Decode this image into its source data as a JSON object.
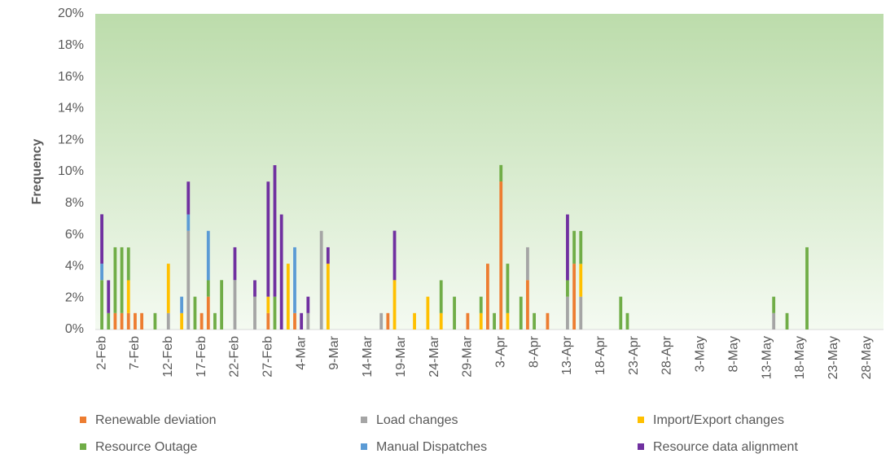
{
  "chart_data": {
    "type": "bar",
    "stacked": true,
    "y_label": "Frequency",
    "categories": [
      "2-Feb",
      null,
      null,
      null,
      null,
      "7-Feb",
      null,
      null,
      null,
      null,
      "12-Feb",
      null,
      null,
      null,
      null,
      "17-Feb",
      null,
      null,
      null,
      null,
      "22-Feb",
      null,
      null,
      null,
      null,
      "27-Feb",
      null,
      null,
      null,
      null,
      "4-Mar",
      null,
      null,
      null,
      null,
      "9-Mar",
      null,
      null,
      null,
      null,
      "14-Mar",
      null,
      null,
      null,
      null,
      "19-Mar",
      null,
      null,
      null,
      null,
      "24-Mar",
      null,
      null,
      null,
      null,
      "29-Mar",
      null,
      null,
      null,
      null,
      "3-Apr",
      null,
      null,
      null,
      null,
      "8-Apr",
      null,
      null,
      null,
      null,
      "13-Apr",
      null,
      null,
      null,
      null,
      "18-Apr",
      null,
      null,
      null,
      null,
      "23-Apr",
      null,
      null,
      null,
      null,
      "28-Apr",
      null,
      null,
      null,
      null,
      "3-May",
      null,
      null,
      null,
      null,
      "8-May",
      null,
      null,
      null,
      null,
      "13-May",
      null,
      null,
      null,
      null,
      "18-May",
      null,
      null,
      null,
      null,
      "23-May",
      null,
      null,
      null,
      null,
      "28-May",
      null,
      null
    ],
    "ylim": [
      0,
      20
    ],
    "yticks": [
      {
        "value": 0,
        "label": "0%"
      },
      {
        "value": 2,
        "label": "2%"
      },
      {
        "value": 4,
        "label": "4%"
      },
      {
        "value": 6,
        "label": "6%"
      },
      {
        "value": 8,
        "label": "8%"
      },
      {
        "value": 10,
        "label": "10%"
      },
      {
        "value": 12,
        "label": "12%"
      },
      {
        "value": 14,
        "label": "14%"
      },
      {
        "value": 16,
        "label": "16%"
      },
      {
        "value": 18,
        "label": "18%"
      },
      {
        "value": 20,
        "label": "20%"
      }
    ],
    "series": [
      {
        "name": "Renewable deviation",
        "color": "#ed7d31",
        "values": [
          0,
          0,
          1.04,
          1.04,
          1.04,
          1.04,
          1.04,
          0,
          0,
          0,
          0,
          0,
          0,
          0,
          0,
          1.04,
          2.08,
          0,
          0,
          0,
          0,
          0,
          0,
          0,
          0,
          1.04,
          0,
          0,
          0,
          1.04,
          0,
          0,
          0,
          0,
          0,
          0,
          0,
          0,
          0,
          0,
          0,
          0,
          0,
          1.04,
          0,
          0,
          0,
          0,
          0,
          0,
          0,
          0,
          0,
          0,
          0,
          1.04,
          0,
          0,
          4.17,
          0,
          9.38,
          0,
          0,
          0,
          3.13,
          0,
          0,
          1.04,
          0,
          0,
          0,
          4.17,
          0,
          0,
          0,
          0,
          0,
          0,
          0,
          0,
          0,
          0,
          0,
          0,
          0,
          0,
          0,
          0,
          0,
          0,
          0,
          0,
          0,
          0,
          0,
          0,
          0,
          0,
          0,
          0,
          0,
          0,
          0,
          0,
          0,
          0,
          0,
          0,
          0,
          0,
          0,
          0,
          0,
          0,
          0,
          0,
          0,
          0
        ]
      },
      {
        "name": "Load changes",
        "color": "#a5a5a5",
        "values": [
          0,
          0,
          0,
          0,
          0,
          0,
          0,
          0,
          0,
          0,
          1.04,
          0,
          0,
          6.25,
          0,
          0,
          0,
          0,
          0,
          0,
          3.13,
          0,
          0,
          2.08,
          0,
          0,
          0,
          0,
          0,
          0,
          0,
          1.04,
          0,
          6.25,
          0,
          0,
          0,
          0,
          0,
          0,
          0,
          0,
          1.04,
          0,
          0,
          0,
          0,
          0,
          0,
          0,
          0,
          0,
          0,
          0,
          0,
          0,
          0,
          0,
          0,
          0,
          0,
          0,
          0,
          0,
          2.08,
          0,
          0,
          0,
          0,
          0,
          2.08,
          0,
          2.08,
          0,
          0,
          0,
          0,
          0,
          0,
          0,
          0,
          0,
          0,
          0,
          0,
          0,
          0,
          0,
          0,
          0,
          0,
          0,
          0,
          0,
          0,
          0,
          0,
          0,
          0,
          0,
          0,
          1.04,
          0,
          0,
          0,
          0,
          0,
          0,
          0,
          0,
          0,
          0,
          0,
          0,
          0,
          0,
          0,
          0
        ]
      },
      {
        "name": "Import/Export changes",
        "color": "#ffc000",
        "values": [
          0,
          0,
          0,
          0,
          2.08,
          0,
          0,
          0,
          0,
          0,
          3.13,
          0,
          1.04,
          0,
          0,
          0,
          0,
          0,
          0,
          0,
          0,
          0,
          0,
          0,
          0,
          1.04,
          0,
          0,
          4.17,
          0,
          0,
          0,
          0,
          0,
          4.17,
          0,
          0,
          0,
          0,
          0,
          0,
          0,
          0,
          0,
          3.13,
          0,
          0,
          1.04,
          0,
          2.08,
          0,
          1.04,
          0,
          0,
          0,
          0,
          0,
          1.04,
          0,
          0,
          0,
          1.04,
          0,
          0,
          0,
          0,
          0,
          0,
          0,
          0,
          0,
          0,
          2.08,
          0,
          0,
          0,
          0,
          0,
          0,
          0,
          0,
          0,
          0,
          0,
          0,
          0,
          0,
          0,
          0,
          0,
          0,
          0,
          0,
          0,
          0,
          0,
          0,
          0,
          0,
          0,
          0,
          0,
          0,
          0,
          0,
          0,
          0,
          0,
          0,
          0,
          0,
          0,
          0,
          0,
          0,
          0,
          0,
          0
        ]
      },
      {
        "name": "Resource Outage",
        "color": "#70ad47",
        "values": [
          3.13,
          1.04,
          4.17,
          4.17,
          2.08,
          0,
          0,
          0,
          1.04,
          0,
          0,
          0,
          0,
          0,
          2.08,
          0,
          1.04,
          1.04,
          3.13,
          0,
          0,
          0,
          0,
          0,
          0,
          0,
          2.08,
          0,
          0,
          0,
          0,
          0,
          0,
          0,
          0,
          0,
          0,
          0,
          0,
          0,
          0,
          0,
          0,
          0,
          0,
          0,
          0,
          0,
          0,
          0,
          0,
          2.08,
          0,
          2.08,
          0,
          0,
          0,
          1.04,
          0,
          1.04,
          1.04,
          3.13,
          0,
          2.08,
          0,
          1.04,
          0,
          0,
          0,
          0,
          1.04,
          2.08,
          2.08,
          0,
          0,
          0,
          0,
          0,
          2.08,
          1.04,
          0,
          0,
          0,
          0,
          0,
          0,
          0,
          0,
          0,
          0,
          0,
          0,
          0,
          0,
          0,
          0,
          0,
          0,
          0,
          0,
          0,
          1.04,
          0,
          1.04,
          0,
          0,
          5.21,
          0,
          0,
          0,
          0,
          0,
          0,
          0,
          0,
          0,
          0,
          0
        ]
      },
      {
        "name": "Manual Dispatches",
        "color": "#5b9bd5",
        "values": [
          1.04,
          0,
          0,
          0,
          0,
          0,
          0,
          0,
          0,
          0,
          0,
          0,
          1.04,
          1.04,
          0,
          0,
          3.13,
          0,
          0,
          0,
          0,
          0,
          0,
          0,
          0,
          0,
          0,
          0,
          0,
          4.17,
          0,
          0,
          0,
          0,
          0,
          0,
          0,
          0,
          0,
          0,
          0,
          0,
          0,
          0,
          0,
          0,
          0,
          0,
          0,
          0,
          0,
          0,
          0,
          0,
          0,
          0,
          0,
          0,
          0,
          0,
          0,
          0,
          0,
          0,
          0,
          0,
          0,
          0,
          0,
          0,
          0,
          0,
          0,
          0,
          0,
          0,
          0,
          0,
          0,
          0,
          0,
          0,
          0,
          0,
          0,
          0,
          0,
          0,
          0,
          0,
          0,
          0,
          0,
          0,
          0,
          0,
          0,
          0,
          0,
          0,
          0,
          0,
          0,
          0,
          0,
          0,
          0,
          0,
          0,
          0,
          0,
          0,
          0,
          0,
          0,
          0,
          0,
          0
        ]
      },
      {
        "name": "Resource data alignment",
        "color": "#7030a0",
        "values": [
          3.13,
          2.08,
          0,
          0,
          0,
          0,
          0,
          0,
          0,
          0,
          0,
          0,
          0,
          2.08,
          0,
          0,
          0,
          0,
          0,
          0,
          2.08,
          0,
          0,
          1.04,
          0,
          7.29,
          8.33,
          7.29,
          0,
          0,
          1.04,
          1.04,
          0,
          0,
          1.04,
          0,
          0,
          0,
          0,
          0,
          0,
          0,
          0,
          0,
          3.13,
          0,
          0,
          0,
          0,
          0,
          0,
          0,
          0,
          0,
          0,
          0,
          0,
          0,
          0,
          0,
          0,
          0,
          0,
          0,
          0,
          0,
          0,
          0,
          0,
          0,
          4.17,
          0,
          0,
          0,
          0,
          0,
          0,
          0,
          0,
          0,
          0,
          0,
          0,
          0,
          0,
          0,
          0,
          0,
          0,
          0,
          0,
          0,
          0,
          0,
          0,
          0,
          0,
          0,
          0,
          0,
          0,
          0,
          0,
          0,
          0,
          0,
          0,
          0,
          0,
          0,
          0,
          0,
          0,
          0,
          0,
          0,
          0,
          0
        ]
      }
    ]
  }
}
